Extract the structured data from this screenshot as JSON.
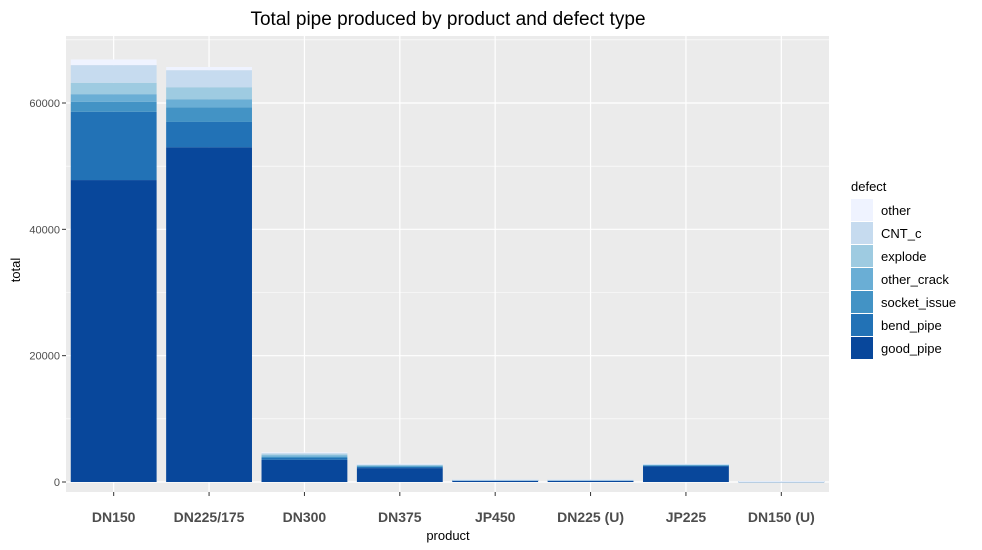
{
  "chart_data": {
    "type": "bar",
    "stacked": true,
    "title": "Total pipe produced by product and defect type",
    "xlabel": "product",
    "ylabel": "total",
    "ylim": [
      0,
      70000
    ],
    "yticks": [
      0,
      20000,
      40000,
      60000
    ],
    "ytick_labels": [
      "0",
      "20000",
      "40000",
      "60000"
    ],
    "grid": true,
    "legend_title": "defect",
    "legend_position": "right",
    "categories": [
      "DN150",
      "DN225/175",
      "DN300",
      "DN375",
      "JP450",
      "DN225 (U)",
      "JP225",
      "DN150 (U)"
    ],
    "series": [
      {
        "name": "good_pipe",
        "color": "#08479b",
        "values": [
          47800,
          53000,
          3500,
          2200,
          300,
          300,
          2500,
          100
        ]
      },
      {
        "name": "bend_pipe",
        "color": "#2272b6",
        "values": [
          10800,
          4000,
          300,
          200,
          20,
          20,
          100,
          10
        ]
      },
      {
        "name": "socket_issue",
        "color": "#4393c5",
        "values": [
          1600,
          2300,
          200,
          100,
          10,
          10,
          80,
          5
        ]
      },
      {
        "name": "other_crack",
        "color": "#6aaed5",
        "values": [
          1200,
          1300,
          200,
          100,
          10,
          10,
          60,
          5
        ]
      },
      {
        "name": "explode",
        "color": "#9ecbe1",
        "values": [
          1800,
          1900,
          200,
          100,
          10,
          10,
          60,
          5
        ]
      },
      {
        "name": "CNT_c",
        "color": "#c6dbef",
        "values": [
          2800,
          2700,
          200,
          150,
          10,
          10,
          80,
          5
        ]
      },
      {
        "name": "other",
        "color": "#eff3ff",
        "values": [
          900,
          500,
          100,
          50,
          5,
          5,
          20,
          2
        ]
      }
    ]
  }
}
